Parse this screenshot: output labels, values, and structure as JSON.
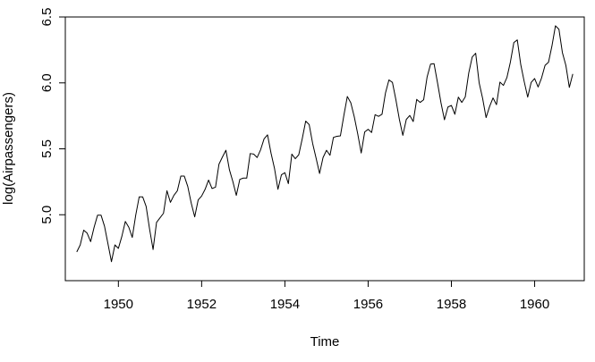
{
  "chart_data": {
    "type": "line",
    "title": "",
    "xlabel": "Time",
    "ylabel": "log(Airpassengers)",
    "xlim": [
      1948.725,
      1961.192
    ],
    "ylim": [
      4.5,
      6.5
    ],
    "xticks": [
      1950,
      1952,
      1954,
      1956,
      1958,
      1960
    ],
    "xtick_labels": [
      "1950",
      "1952",
      "1954",
      "1956",
      "1958",
      "1960"
    ],
    "yticks": [
      5.0,
      5.5,
      6.0,
      6.5
    ],
    "ytick_labels": [
      "5.0",
      "5.5",
      "6.0",
      "6.5"
    ],
    "grid": false,
    "line_color": "#000000",
    "series": [
      {
        "x_start": 1949.0,
        "x_step": 0.083333,
        "values": [
          4.718,
          4.771,
          4.883,
          4.86,
          4.796,
          4.905,
          4.997,
          4.997,
          4.913,
          4.779,
          4.644,
          4.771,
          4.745,
          4.836,
          4.949,
          4.905,
          4.828,
          4.997,
          5.136,
          5.136,
          5.063,
          4.89,
          4.736,
          4.942,
          4.977,
          5.011,
          5.182,
          5.094,
          5.147,
          5.182,
          5.293,
          5.293,
          5.215,
          5.088,
          4.984,
          5.112,
          5.142,
          5.193,
          5.263,
          5.199,
          5.209,
          5.384,
          5.438,
          5.489,
          5.342,
          5.252,
          5.147,
          5.268,
          5.278,
          5.278,
          5.464,
          5.46,
          5.434,
          5.493,
          5.576,
          5.606,
          5.468,
          5.352,
          5.193,
          5.303,
          5.319,
          5.236,
          5.46,
          5.425,
          5.455,
          5.576,
          5.71,
          5.684,
          5.541,
          5.429,
          5.313,
          5.434,
          5.489,
          5.451,
          5.587,
          5.595,
          5.598,
          5.753,
          5.897,
          5.849,
          5.743,
          5.613,
          5.468,
          5.628,
          5.648,
          5.624,
          5.759,
          5.746,
          5.762,
          5.924,
          6.023,
          6.004,
          5.872,
          5.724,
          5.602,
          5.723,
          5.753,
          5.707,
          5.875,
          5.852,
          5.872,
          6.045,
          6.142,
          6.146,
          6.001,
          5.849,
          5.72,
          5.817,
          5.829,
          5.762,
          5.892,
          5.852,
          5.894,
          6.075,
          6.196,
          6.225,
          6.001,
          5.883,
          5.737,
          5.82,
          5.886,
          5.835,
          6.006,
          5.981,
          6.04,
          6.157,
          6.306,
          6.326,
          6.138,
          6.009,
          5.892,
          6.004,
          6.033,
          5.969,
          6.038,
          6.133,
          6.157,
          6.282,
          6.433,
          6.407,
          6.23,
          6.133,
          5.966,
          6.068
        ]
      }
    ]
  }
}
